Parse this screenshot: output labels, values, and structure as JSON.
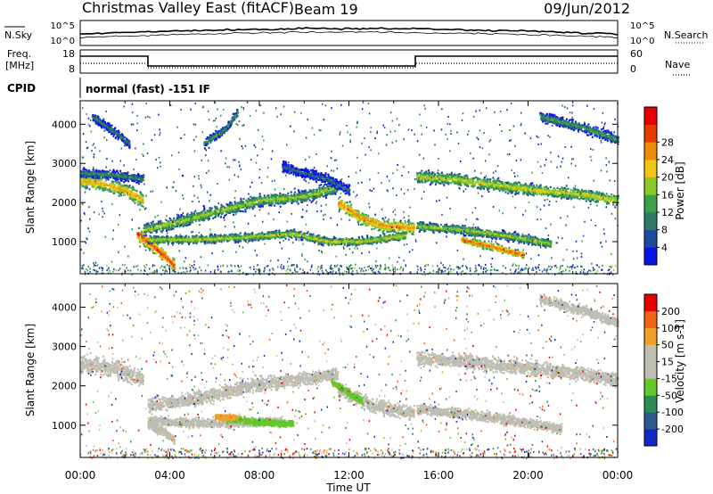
{
  "header": {
    "title": "Christmas Valley East (fitACF)",
    "beam": "Beam 19",
    "date": "09/Jun/2012"
  },
  "panels": {
    "nsky": {
      "left_label": "N.Sky",
      "left_ticks": [
        "10^5",
        "10^0"
      ],
      "right_ticks": [
        "10^5",
        "10^0"
      ],
      "right_label": "N.Search"
    },
    "freq": {
      "left_label_1": "Freq.",
      "left_label_2": "[MHz]",
      "left_ticks": [
        "18",
        "8"
      ],
      "right_ticks": [
        "60",
        "0"
      ],
      "right_label": "Nave"
    },
    "cpid": {
      "label": "CPID",
      "text": "normal (fast) -151 IF"
    }
  },
  "chart_data": [
    {
      "type": "heatmap",
      "panel": "power",
      "ylabel": "Slant Range [km]",
      "yticks": [
        1000,
        2000,
        3000,
        4000
      ],
      "ylim": [
        180,
        4600
      ],
      "xlim": [
        0,
        24
      ],
      "colorbar_label": "Power [dB]",
      "colorbar_ticks": [
        "4",
        "8",
        "12",
        "16",
        "20",
        "24",
        "28"
      ],
      "colorbar_colors": [
        "#0a14e6",
        "#1e4aa0",
        "#2f7a64",
        "#3aa04a",
        "#8cc828",
        "#f0c814",
        "#f08c0a",
        "#e63c00",
        "#e60000"
      ],
      "bands": [
        {
          "t": [
            0,
            1.0,
            2.0,
            2.8
          ],
          "r": [
            2550,
            2480,
            2300,
            2050
          ],
          "w": 250,
          "c": 0.72
        },
        {
          "t": [
            0,
            1.5,
            2.8
          ],
          "r": [
            2750,
            2700,
            2600
          ],
          "w": 160,
          "c": 0.35
        },
        {
          "t": [
            2.5,
            3.2,
            3.8,
            4.2
          ],
          "r": [
            1200,
            900,
            600,
            350
          ],
          "w": 220,
          "c": 0.9
        },
        {
          "t": [
            2.8,
            4.0,
            6.0,
            8.0,
            10.0,
            11.5
          ],
          "r": [
            1300,
            1450,
            1750,
            2050,
            2150,
            2400
          ],
          "w": 210,
          "c": 0.55
        },
        {
          "t": [
            11.5,
            12.5,
            13.5,
            14.9
          ],
          "r": [
            2000,
            1600,
            1400,
            1350
          ],
          "w": 230,
          "c": 0.78
        },
        {
          "t": [
            3.0,
            5.0,
            7.0,
            9.5,
            11.0,
            12.5,
            14.5
          ],
          "r": [
            1050,
            1050,
            1100,
            1200,
            1000,
            1000,
            1150
          ],
          "w": 140,
          "c": 0.6
        },
        {
          "t": [
            15.0,
            16.5,
            18.5,
            20.5,
            22.5,
            24.0
          ],
          "r": [
            2650,
            2600,
            2450,
            2300,
            2200,
            2050
          ],
          "w": 210,
          "c": 0.62
        },
        {
          "t": [
            15.0,
            17.0,
            19.0,
            21.0
          ],
          "r": [
            1400,
            1300,
            1150,
            950
          ],
          "w": 160,
          "c": 0.55
        },
        {
          "t": [
            17.0,
            18.5,
            19.8
          ],
          "r": [
            1050,
            850,
            650
          ],
          "w": 120,
          "c": 0.85
        },
        {
          "t": [
            9.0,
            11.0,
            12.0
          ],
          "r": [
            2900,
            2600,
            2300
          ],
          "w": 180,
          "c": 0.25
        },
        {
          "t": [
            20.5,
            22.5,
            24.0
          ],
          "r": [
            4200,
            3900,
            3600
          ],
          "w": 180,
          "c": 0.4
        },
        {
          "t": [
            0.5,
            1.5,
            2.2
          ],
          "r": [
            4200,
            3800,
            3500
          ],
          "w": 160,
          "c": 0.3
        },
        {
          "t": [
            5.5,
            6.5,
            7.0
          ],
          "r": [
            3500,
            3900,
            4300
          ],
          "w": 140,
          "c": 0.4
        }
      ]
    },
    {
      "type": "heatmap",
      "panel": "velocity",
      "xlabel": "Time UT",
      "ylabel": "Slant Range [km]",
      "xticks": [
        "00:00",
        "04:00",
        "08:00",
        "12:00",
        "16:00",
        "20:00",
        "00:00"
      ],
      "yticks": [
        1000,
        2000,
        3000,
        4000
      ],
      "ylim": [
        180,
        4600
      ],
      "xlim": [
        0,
        24
      ],
      "colorbar_label": "Velocity [m s-1]",
      "colorbar_ticks": [
        "200",
        "100",
        "50",
        "15",
        "-15",
        "-50",
        "-100",
        "-200"
      ],
      "colorbar_colors": [
        "#1428c8",
        "#2d5a8c",
        "#2d8c50",
        "#64c828",
        "#bebeb4",
        "#bebeb4",
        "#f0a028",
        "#f06414",
        "#e60000"
      ],
      "bands": [
        {
          "t": [
            0,
            1.5,
            2.8
          ],
          "r": [
            2550,
            2450,
            2150
          ],
          "w": 320,
          "c": "gray"
        },
        {
          "t": [
            3.0,
            5.0,
            7.5,
            9.5,
            11.5
          ],
          "r": [
            1500,
            1650,
            2000,
            2150,
            2300
          ],
          "w": 260,
          "c": "gray"
        },
        {
          "t": [
            11.5,
            13.0,
            14.9
          ],
          "r": [
            1900,
            1500,
            1300
          ],
          "w": 260,
          "c": "gray"
        },
        {
          "t": [
            15.0,
            17.5,
            20.0,
            22.5,
            24.0
          ],
          "r": [
            2700,
            2600,
            2450,
            2300,
            2150
          ],
          "w": 260,
          "c": "gray"
        },
        {
          "t": [
            3.0,
            6.0,
            9.0
          ],
          "r": [
            1100,
            1050,
            1100
          ],
          "w": 160,
          "c": "gray"
        },
        {
          "t": [
            6.5,
            7.5,
            8.5,
            9.5
          ],
          "r": [
            1150,
            1100,
            1050,
            1050
          ],
          "w": 130,
          "c": "green"
        },
        {
          "t": [
            6.0,
            7.0
          ],
          "r": [
            1200,
            1200
          ],
          "w": 110,
          "c": "orange"
        },
        {
          "t": [
            11.2,
            12.0,
            12.6
          ],
          "r": [
            2100,
            1800,
            1600
          ],
          "w": 130,
          "c": "green"
        },
        {
          "t": [
            15.0,
            17.0,
            19.5,
            21.5
          ],
          "r": [
            1400,
            1300,
            1100,
            900
          ],
          "w": 180,
          "c": "gray"
        },
        {
          "t": [
            20.5,
            22.5,
            24.0
          ],
          "r": [
            4200,
            3900,
            3600
          ],
          "w": 180,
          "c": "gray"
        },
        {
          "t": [
            3.0,
            3.8,
            4.2
          ],
          "r": [
            1000,
            800,
            600
          ],
          "w": 150,
          "c": "gray"
        }
      ]
    }
  ]
}
